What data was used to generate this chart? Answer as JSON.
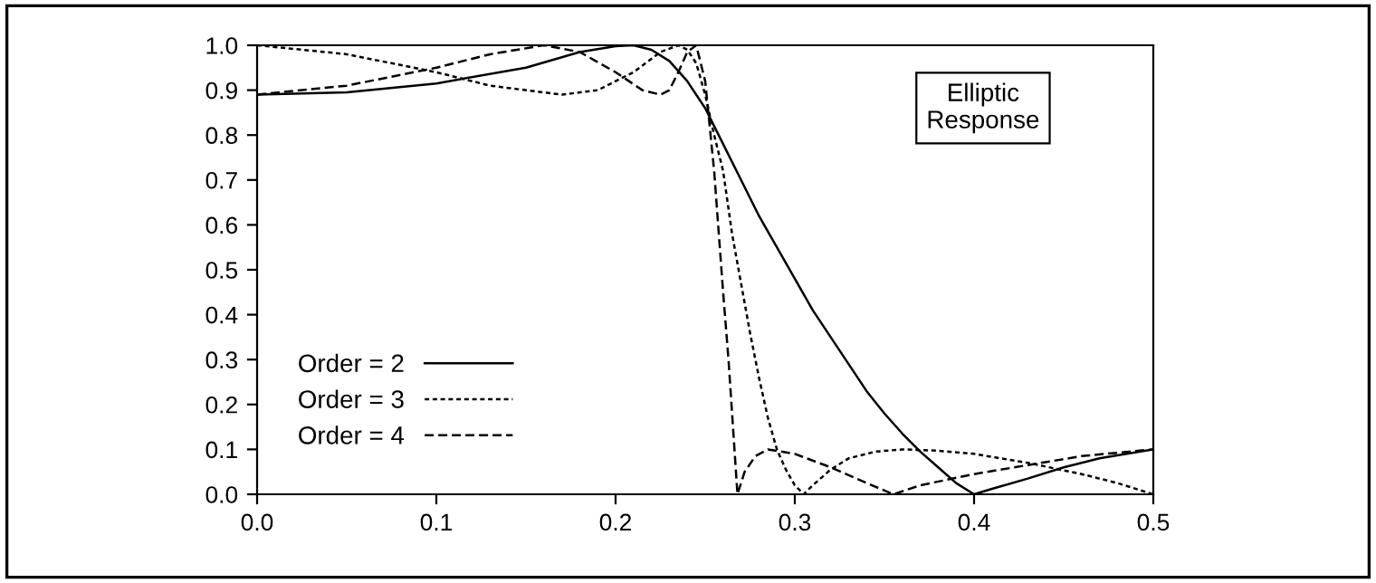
{
  "chart_data": {
    "type": "line",
    "annotations": [
      "Elliptic\nResponse"
    ],
    "series": [
      {
        "name": "Order = 2",
        "color": "#000000",
        "line_style": "solid",
        "x": [
          0,
          0.05,
          0.1,
          0.15,
          0.18,
          0.2,
          0.21,
          0.22,
          0.23,
          0.24,
          0.25,
          0.26,
          0.27,
          0.28,
          0.29,
          0.3,
          0.31,
          0.32,
          0.33,
          0.34,
          0.35,
          0.36,
          0.37,
          0.38,
          0.39,
          0.4,
          0.41,
          0.43,
          0.45,
          0.47,
          0.5
        ],
        "values": [
          0.89,
          0.895,
          0.915,
          0.95,
          0.985,
          0.998,
          1.0,
          0.99,
          0.965,
          0.92,
          0.86,
          0.78,
          0.7,
          0.62,
          0.55,
          0.48,
          0.41,
          0.35,
          0.29,
          0.23,
          0.18,
          0.135,
          0.095,
          0.06,
          0.025,
          0.0,
          0.012,
          0.035,
          0.06,
          0.08,
          0.1
        ]
      },
      {
        "name": "Order = 3",
        "color": "#000000",
        "line_style": "dotted",
        "x": [
          0,
          0.05,
          0.1,
          0.13,
          0.17,
          0.19,
          0.21,
          0.225,
          0.235,
          0.24,
          0.245,
          0.25,
          0.255,
          0.26,
          0.265,
          0.27,
          0.275,
          0.28,
          0.285,
          0.29,
          0.295,
          0.3,
          0.305,
          0.31,
          0.32,
          0.33,
          0.345,
          0.36,
          0.38,
          0.4,
          0.43,
          0.46,
          0.48,
          0.5
        ],
        "values": [
          1.0,
          0.98,
          0.94,
          0.91,
          0.89,
          0.9,
          0.94,
          0.985,
          1.0,
          0.99,
          0.96,
          0.89,
          0.8,
          0.72,
          0.58,
          0.47,
          0.36,
          0.26,
          0.17,
          0.1,
          0.055,
          0.02,
          0.0,
          0.02,
          0.055,
          0.08,
          0.095,
          0.1,
          0.097,
          0.09,
          0.07,
          0.045,
          0.025,
          0.0
        ]
      },
      {
        "name": "Order = 4",
        "color": "#000000",
        "line_style": "dashed",
        "x": [
          0,
          0.05,
          0.1,
          0.13,
          0.16,
          0.18,
          0.2,
          0.215,
          0.225,
          0.23,
          0.235,
          0.24,
          0.245,
          0.25,
          0.255,
          0.26,
          0.263,
          0.266,
          0.268,
          0.272,
          0.278,
          0.285,
          0.3,
          0.32,
          0.34,
          0.355,
          0.37,
          0.4,
          0.43,
          0.46,
          0.5
        ],
        "values": [
          0.89,
          0.91,
          0.95,
          0.98,
          1.0,
          0.985,
          0.94,
          0.9,
          0.89,
          0.9,
          0.94,
          0.985,
          1.0,
          0.92,
          0.72,
          0.45,
          0.3,
          0.12,
          0.0,
          0.05,
          0.085,
          0.1,
          0.09,
          0.06,
          0.025,
          0.0,
          0.02,
          0.045,
          0.065,
          0.085,
          0.1
        ]
      }
    ],
    "xlim": [
      0,
      0.5
    ],
    "xticks": [
      {
        "value": 0,
        "label": "0.0"
      },
      {
        "value": 0.1,
        "label": "0.1"
      },
      {
        "value": 0.2,
        "label": "0.2"
      },
      {
        "value": 0.3,
        "label": "0.3"
      },
      {
        "value": 0.4,
        "label": "0.4"
      },
      {
        "value": 0.5,
        "label": "0.5"
      }
    ],
    "ylim": [
      0,
      1.0
    ],
    "yticks": [
      {
        "value": 0,
        "label": "0.0"
      },
      {
        "value": 0.1,
        "label": "0.1"
      },
      {
        "value": 0.2,
        "label": "0.2"
      },
      {
        "value": 0.3,
        "label": "0.3"
      },
      {
        "value": 0.4,
        "label": "0.4"
      },
      {
        "value": 0.5,
        "label": "0.5"
      },
      {
        "value": 0.6,
        "label": "0.6"
      },
      {
        "value": 0.7,
        "label": "0.7"
      },
      {
        "value": 0.8,
        "label": "0.8"
      },
      {
        "value": 0.9,
        "label": "0.9"
      },
      {
        "value": 1.0,
        "label": "1.0"
      }
    ],
    "grid": false,
    "legend": "bottom left"
  }
}
